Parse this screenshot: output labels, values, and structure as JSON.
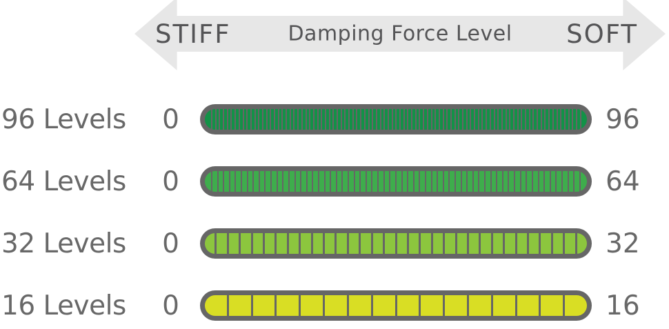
{
  "header": {
    "left_label": "STIFF",
    "title": "Damping Force Level",
    "right_label": "SOFT"
  },
  "rows": [
    {
      "label": "96 Levels",
      "min": "0",
      "max": "96",
      "levels": 96,
      "color": "#129247"
    },
    {
      "label": "64 Levels",
      "min": "0",
      "max": "64",
      "levels": 64,
      "color": "#3EAD4C"
    },
    {
      "label": "32 Levels",
      "min": "0",
      "max": "32",
      "levels": 32,
      "color": "#8CC63E"
    },
    {
      "label": "16 Levels",
      "min": "0",
      "max": "16",
      "levels": 16,
      "color": "#D9DE24"
    }
  ],
  "colors": {
    "arrow_bg": "#E7E7E7",
    "arrow_text": "#545456",
    "label_text": "#686868",
    "bar_border": "#666666"
  }
}
